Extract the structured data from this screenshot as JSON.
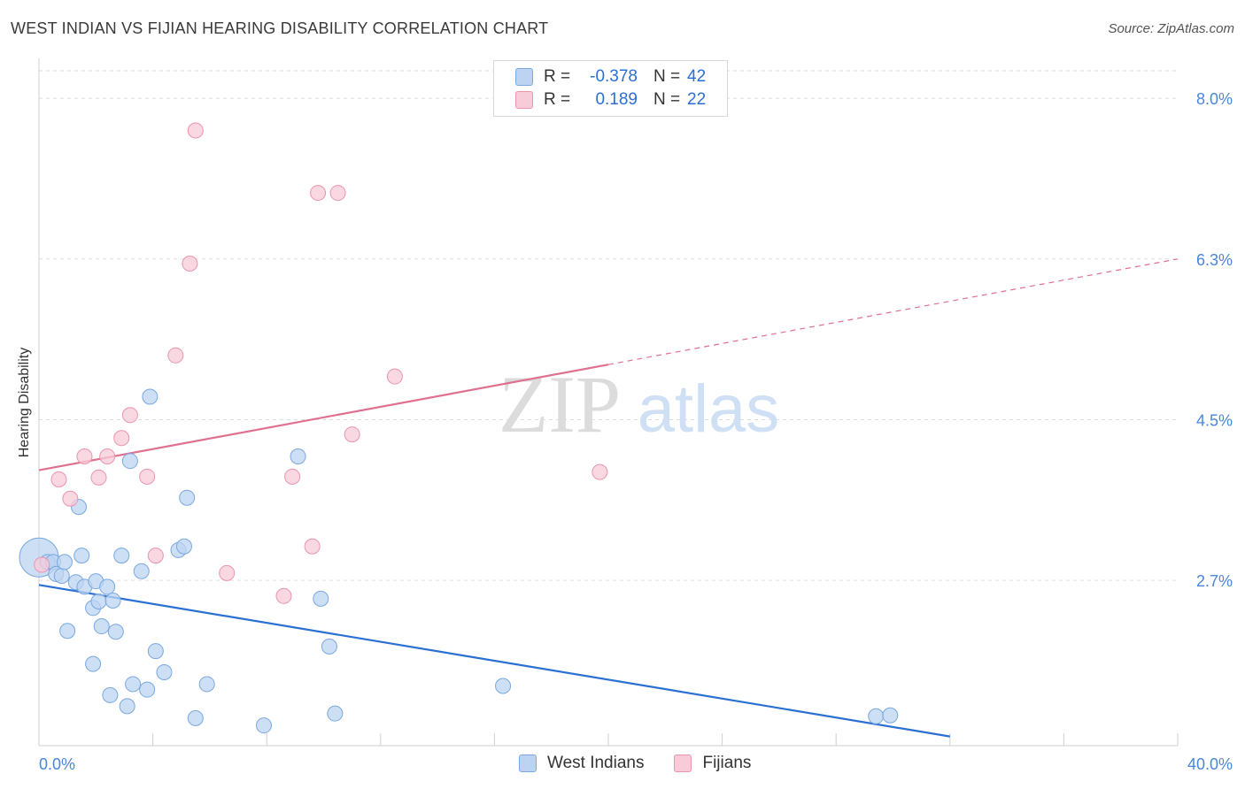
{
  "title": "WEST INDIAN VS FIJIAN HEARING DISABILITY CORRELATION CHART",
  "source": "Source: ZipAtlas.com",
  "watermark": {
    "zip": "ZIP",
    "atlas": "atlas"
  },
  "legend": {
    "rows": [
      {
        "r_label": "R =",
        "r_value": "-0.378",
        "n_label": "N =",
        "n_value": "42"
      },
      {
        "r_label": "R =",
        "r_value": "0.189",
        "n_label": "N =",
        "n_value": "22"
      }
    ]
  },
  "bottom_legend": [
    "West Indians",
    "Fijians"
  ],
  "colors": {
    "blue_fill": "#bcd4f2",
    "blue_stroke": "#7aa8e0",
    "blue_line": "#2a6fd1",
    "pink_fill": "#f8cbd8",
    "pink_stroke": "#eb94ae",
    "pink_line": "#e0708f",
    "tick_label": "#4a86d8",
    "grid": "#dddddd"
  },
  "chart_data": {
    "type": "scatter",
    "title": "WEST INDIAN VS FIJIAN HEARING DISABILITY CORRELATION CHART",
    "xlabel": "",
    "ylabel": "Hearing Disability",
    "xlim": [
      0,
      40
    ],
    "ylim": [
      0.95,
      8.3
    ],
    "x_tick_labels": [
      "0.0%",
      "40.0%"
    ],
    "y_ticks": [
      {
        "value": 8.0,
        "label": "8.0%"
      },
      {
        "value": 6.25,
        "label": "6.3%"
      },
      {
        "value": 4.5,
        "label": "4.5%"
      },
      {
        "value": 2.75,
        "label": "2.7%"
      }
    ],
    "series": [
      {
        "name": "West Indians",
        "R": -0.378,
        "N": 42,
        "points": [
          [
            0.0,
            3.0
          ],
          [
            0.3,
            2.95
          ],
          [
            0.5,
            2.95
          ],
          [
            0.6,
            2.82
          ],
          [
            0.8,
            2.8
          ],
          [
            0.9,
            2.95
          ],
          [
            1.0,
            2.2
          ],
          [
            1.3,
            2.73
          ],
          [
            1.4,
            3.55
          ],
          [
            1.5,
            3.02
          ],
          [
            1.6,
            2.68
          ],
          [
            1.9,
            2.45
          ],
          [
            1.9,
            1.84
          ],
          [
            2.0,
            2.74
          ],
          [
            2.1,
            2.52
          ],
          [
            2.2,
            2.25
          ],
          [
            2.4,
            2.68
          ],
          [
            2.5,
            1.5
          ],
          [
            2.6,
            2.53
          ],
          [
            2.7,
            2.19
          ],
          [
            2.9,
            3.02
          ],
          [
            3.1,
            1.38
          ],
          [
            3.2,
            4.05
          ],
          [
            3.3,
            1.62
          ],
          [
            3.6,
            2.85
          ],
          [
            3.8,
            1.56
          ],
          [
            3.9,
            4.75
          ],
          [
            4.1,
            1.98
          ],
          [
            4.4,
            1.75
          ],
          [
            4.9,
            3.08
          ],
          [
            5.1,
            3.12
          ],
          [
            5.2,
            3.65
          ],
          [
            5.5,
            1.25
          ],
          [
            5.9,
            1.62
          ],
          [
            7.9,
            1.17
          ],
          [
            9.1,
            4.1
          ],
          [
            9.9,
            2.55
          ],
          [
            10.2,
            2.03
          ],
          [
            10.4,
            1.3
          ],
          [
            16.3,
            1.6
          ],
          [
            29.4,
            1.27
          ],
          [
            29.9,
            1.28
          ]
        ],
        "trend": {
          "x": [
            0,
            32
          ],
          "y": [
            2.7,
            1.05
          ]
        }
      },
      {
        "name": "Fijians",
        "R": 0.189,
        "N": 22,
        "points": [
          [
            0.1,
            2.92
          ],
          [
            0.7,
            3.85
          ],
          [
            1.1,
            3.64
          ],
          [
            1.6,
            4.1
          ],
          [
            2.1,
            3.87
          ],
          [
            2.4,
            4.1
          ],
          [
            2.9,
            4.3
          ],
          [
            3.2,
            4.55
          ],
          [
            3.8,
            3.88
          ],
          [
            4.1,
            3.02
          ],
          [
            4.8,
            5.2
          ],
          [
            5.3,
            6.2
          ],
          [
            5.5,
            7.65
          ],
          [
            6.6,
            2.83
          ],
          [
            8.6,
            2.58
          ],
          [
            8.9,
            3.88
          ],
          [
            9.6,
            3.12
          ],
          [
            9.8,
            6.97
          ],
          [
            10.5,
            6.97
          ],
          [
            11.0,
            4.34
          ],
          [
            12.5,
            4.97
          ],
          [
            19.7,
            3.93
          ]
        ],
        "trend": {
          "x": [
            0,
            20
          ],
          "y": [
            3.95,
            5.1
          ],
          "dashed_extension": {
            "x": [
              20,
              40
            ],
            "y": [
              5.1,
              6.25
            ]
          }
        }
      }
    ]
  }
}
